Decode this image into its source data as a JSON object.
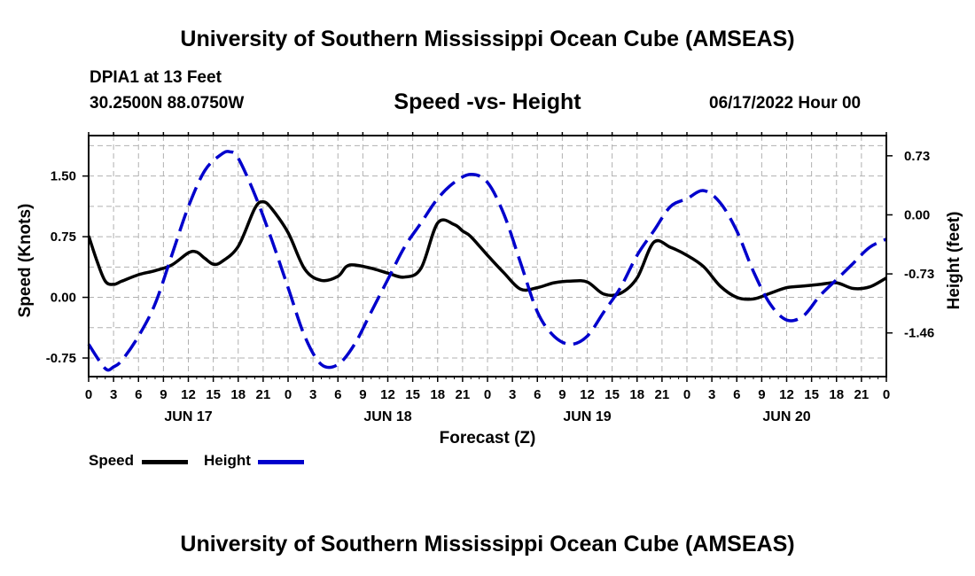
{
  "header": {
    "title": "University of Southern Mississippi Ocean Cube (AMSEAS)",
    "station": "DPIA1 at 13 Feet",
    "coords": "30.2500N  88.0750W",
    "subtitle": "Speed -vs- Height",
    "date": "06/17/2022 Hour 00"
  },
  "footer": {
    "title": "University of Southern Mississippi Ocean Cube (AMSEAS)"
  },
  "legend": {
    "speed_label": "Speed",
    "height_label": "Height",
    "speed_color": "#000000",
    "height_color": "#0000cc"
  },
  "chart_data": {
    "type": "line",
    "title": "Speed -vs- Height",
    "xlabel": "Forecast (Z)",
    "ylabel_left": "Speed (Knots)",
    "ylabel_right": "Height (feet)",
    "xlim": [
      0,
      96
    ],
    "ylim_left": [
      -0.98,
      2.0
    ],
    "ylim_right": [
      -2.0,
      0.98
    ],
    "grid": true,
    "x_tick_labels": [
      "0",
      "3",
      "6",
      "9",
      "12",
      "15",
      "18",
      "21",
      "0",
      "3",
      "6",
      "9",
      "12",
      "15",
      "18",
      "21",
      "0",
      "3",
      "6",
      "9",
      "12",
      "15",
      "18",
      "21",
      "0",
      "3",
      "6",
      "9",
      "12",
      "15",
      "18",
      "21",
      "0"
    ],
    "date_labels": [
      {
        "x": 12,
        "label": "JUN 17"
      },
      {
        "x": 36,
        "label": "JUN 18"
      },
      {
        "x": 60,
        "label": "JUN 19"
      },
      {
        "x": 84,
        "label": "JUN 20"
      }
    ],
    "y_left_ticks": [
      {
        "value": -0.75,
        "label": "-0.75"
      },
      {
        "value": 0,
        "label": "0.00"
      },
      {
        "value": 0.75,
        "label": "0.75"
      },
      {
        "value": 1.5,
        "label": "1.50"
      }
    ],
    "y_right_ticks": [
      {
        "value": -1.46,
        "label": "-1.46"
      },
      {
        "value": -0.73,
        "label": "-0.73"
      },
      {
        "value": 0,
        "label": "0.00"
      },
      {
        "value": 0.73,
        "label": "0.73"
      }
    ],
    "series": [
      {
        "name": "Speed",
        "axis": "left",
        "color": "#000000",
        "x": [
          0,
          1,
          2,
          3,
          4,
          6,
          8,
          10,
          12,
          13,
          14,
          15,
          16,
          18,
          20,
          21,
          22,
          24,
          26,
          28,
          30,
          31,
          32,
          34,
          36,
          38,
          40,
          42,
          44,
          45,
          46,
          48,
          50,
          52,
          54,
          56,
          58,
          60,
          62,
          64,
          66,
          68,
          70,
          72,
          74,
          76,
          78,
          80,
          82,
          84,
          86,
          88,
          90,
          92,
          94,
          96
        ],
        "values": [
          0.76,
          0.45,
          0.2,
          0.16,
          0.2,
          0.28,
          0.33,
          0.4,
          0.55,
          0.56,
          0.48,
          0.41,
          0.44,
          0.63,
          1.1,
          1.18,
          1.1,
          0.8,
          0.35,
          0.21,
          0.26,
          0.38,
          0.4,
          0.36,
          0.3,
          0.25,
          0.36,
          0.92,
          0.9,
          0.82,
          0.75,
          0.52,
          0.3,
          0.1,
          0.12,
          0.18,
          0.2,
          0.19,
          0.04,
          0.05,
          0.24,
          0.68,
          0.62,
          0.52,
          0.38,
          0.14,
          0.0,
          -0.02,
          0.05,
          0.12,
          0.14,
          0.16,
          0.18,
          0.11,
          0.13,
          0.24
        ]
      },
      {
        "name": "Height",
        "axis": "right",
        "color": "#0000cc",
        "x": [
          0,
          2,
          3,
          4,
          6,
          8,
          10,
          12,
          14,
          16,
          17,
          18,
          20,
          22,
          24,
          26,
          28,
          30,
          32,
          34,
          36,
          38,
          40,
          42,
          44,
          46,
          48,
          50,
          52,
          54,
          56,
          58,
          60,
          62,
          64,
          66,
          68,
          70,
          72,
          74,
          76,
          78,
          80,
          82,
          84,
          86,
          88,
          90,
          92,
          94,
          96
        ],
        "values": [
          -1.6,
          -1.9,
          -1.88,
          -1.8,
          -1.5,
          -1.1,
          -0.5,
          0.1,
          0.55,
          0.75,
          0.78,
          0.7,
          0.25,
          -0.3,
          -0.9,
          -1.5,
          -1.85,
          -1.85,
          -1.6,
          -1.2,
          -0.8,
          -0.4,
          -0.1,
          0.2,
          0.4,
          0.5,
          0.4,
          0.0,
          -0.6,
          -1.2,
          -1.5,
          -1.6,
          -1.5,
          -1.2,
          -0.9,
          -0.5,
          -0.2,
          0.1,
          0.2,
          0.3,
          0.15,
          -0.2,
          -0.7,
          -1.1,
          -1.3,
          -1.25,
          -1.0,
          -0.8,
          -0.6,
          -0.4,
          -0.3
        ]
      }
    ]
  }
}
